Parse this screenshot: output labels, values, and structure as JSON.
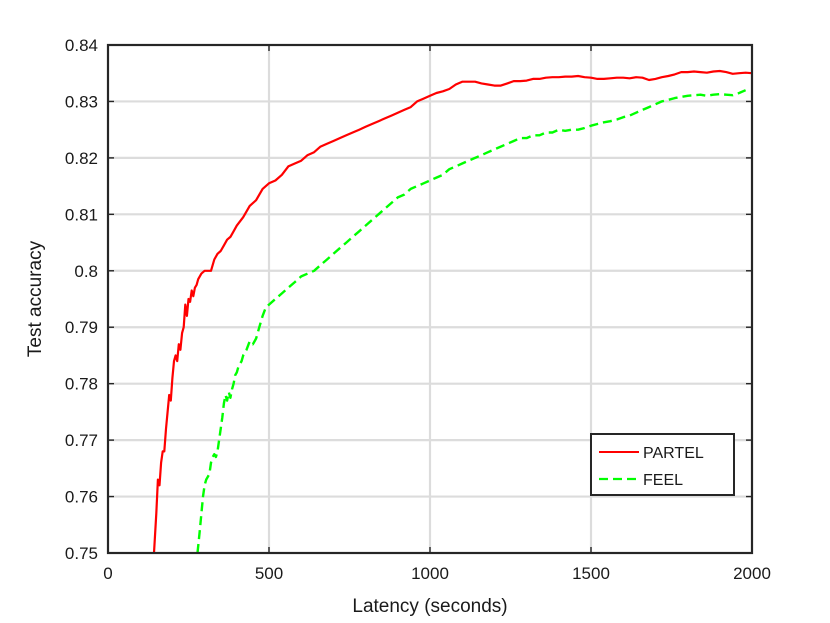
{
  "chart_data": {
    "type": "line",
    "title": "",
    "xlabel": "Latency (seconds)",
    "ylabel": "Test accuracy",
    "xlim": [
      0,
      2000
    ],
    "ylim": [
      0.75,
      0.84
    ],
    "xticks": [
      0,
      500,
      1000,
      1500,
      2000
    ],
    "xtick_labels": [
      "0",
      "500",
      "1000",
      "1500",
      "2000"
    ],
    "yticks": [
      0.75,
      0.76,
      0.77,
      0.78,
      0.79,
      0.8,
      0.81,
      0.82,
      0.83,
      0.84
    ],
    "ytick_labels": [
      "0.75",
      "0.76",
      "0.77",
      "0.78",
      "0.79",
      "0.8",
      "0.81",
      "0.82",
      "0.83",
      "0.84"
    ],
    "grid": true,
    "legend_position": "lower-right",
    "series": [
      {
        "name": "PARTEL",
        "color": "#ff0000",
        "style": "solid",
        "x": [
          143,
          150,
          155,
          160,
          165,
          170,
          175,
          180,
          185,
          190,
          195,
          200,
          205,
          210,
          215,
          220,
          225,
          230,
          235,
          240,
          245,
          250,
          255,
          260,
          265,
          270,
          275,
          280,
          290,
          300,
          310,
          320,
          330,
          340,
          350,
          360,
          370,
          380,
          390,
          400,
          420,
          440,
          460,
          480,
          500,
          520,
          540,
          560,
          580,
          600,
          620,
          640,
          660,
          680,
          700,
          720,
          740,
          760,
          780,
          800,
          820,
          840,
          860,
          880,
          900,
          920,
          940,
          960,
          980,
          1000,
          1020,
          1040,
          1060,
          1080,
          1100,
          1120,
          1140,
          1160,
          1180,
          1200,
          1220,
          1240,
          1260,
          1280,
          1300,
          1320,
          1340,
          1360,
          1380,
          1400,
          1420,
          1440,
          1460,
          1480,
          1500,
          1520,
          1540,
          1560,
          1580,
          1600,
          1620,
          1640,
          1660,
          1680,
          1700,
          1720,
          1740,
          1760,
          1780,
          1800,
          1820,
          1840,
          1860,
          1880,
          1900,
          1920,
          1940,
          1960,
          1980,
          2000
        ],
        "y": [
          0.75,
          0.757,
          0.763,
          0.762,
          0.766,
          0.768,
          0.768,
          0.772,
          0.775,
          0.778,
          0.777,
          0.781,
          0.784,
          0.785,
          0.784,
          0.787,
          0.786,
          0.789,
          0.79,
          0.794,
          0.792,
          0.795,
          0.7945,
          0.7965,
          0.7955,
          0.797,
          0.7975,
          0.7985,
          0.7995,
          0.8,
          0.8,
          0.8,
          0.802,
          0.803,
          0.8035,
          0.8045,
          0.8055,
          0.806,
          0.807,
          0.808,
          0.8095,
          0.8115,
          0.8125,
          0.8145,
          0.8155,
          0.816,
          0.817,
          0.8185,
          0.819,
          0.8195,
          0.8205,
          0.821,
          0.822,
          0.8225,
          0.823,
          0.8235,
          0.824,
          0.8245,
          0.825,
          0.8255,
          0.826,
          0.8265,
          0.827,
          0.8275,
          0.828,
          0.8285,
          0.829,
          0.83,
          0.8305,
          0.831,
          0.8315,
          0.8318,
          0.8322,
          0.833,
          0.8335,
          0.8335,
          0.8335,
          0.8332,
          0.833,
          0.8328,
          0.8328,
          0.8332,
          0.8336,
          0.8336,
          0.8337,
          0.834,
          0.834,
          0.8342,
          0.8343,
          0.8343,
          0.8344,
          0.8344,
          0.8345,
          0.8343,
          0.8342,
          0.834,
          0.834,
          0.8341,
          0.8342,
          0.8342,
          0.8341,
          0.8343,
          0.8342,
          0.8338,
          0.834,
          0.8343,
          0.8345,
          0.8348,
          0.8352,
          0.8352,
          0.8353,
          0.8352,
          0.8351,
          0.8353,
          0.8354,
          0.8352,
          0.8349,
          0.835,
          0.8351,
          0.835
        ]
      },
      {
        "name": "FEEL",
        "color": "#00ff00",
        "style": "dashed",
        "x": [
          278,
          285,
          290,
          295,
          300,
          305,
          310,
          315,
          320,
          325,
          330,
          335,
          340,
          345,
          350,
          355,
          360,
          365,
          370,
          375,
          380,
          385,
          390,
          395,
          400,
          405,
          410,
          415,
          420,
          430,
          440,
          450,
          460,
          470,
          480,
          490,
          500,
          520,
          540,
          560,
          580,
          600,
          620,
          640,
          660,
          680,
          700,
          720,
          740,
          760,
          780,
          800,
          820,
          840,
          860,
          880,
          900,
          920,
          940,
          960,
          980,
          1000,
          1020,
          1040,
          1060,
          1080,
          1100,
          1120,
          1140,
          1160,
          1180,
          1200,
          1220,
          1240,
          1260,
          1280,
          1300,
          1320,
          1340,
          1360,
          1380,
          1400,
          1420,
          1440,
          1460,
          1480,
          1500,
          1520,
          1540,
          1560,
          1580,
          1600,
          1620,
          1640,
          1660,
          1680,
          1700,
          1720,
          1740,
          1760,
          1780,
          1800,
          1820,
          1840,
          1860,
          1880,
          1900,
          1920,
          1940,
          1960,
          1980
        ],
        "y": [
          0.75,
          0.754,
          0.757,
          0.76,
          0.762,
          0.763,
          0.7635,
          0.764,
          0.766,
          0.767,
          0.7675,
          0.767,
          0.768,
          0.77,
          0.772,
          0.774,
          0.7765,
          0.778,
          0.777,
          0.7785,
          0.7775,
          0.779,
          0.78,
          0.7815,
          0.782,
          0.783,
          0.7835,
          0.784,
          0.785,
          0.786,
          0.7875,
          0.787,
          0.788,
          0.79,
          0.792,
          0.7935,
          0.794,
          0.795,
          0.796,
          0.797,
          0.798,
          0.799,
          0.7995,
          0.8,
          0.801,
          0.802,
          0.803,
          0.804,
          0.805,
          0.806,
          0.807,
          0.808,
          0.809,
          0.81,
          0.811,
          0.812,
          0.813,
          0.8135,
          0.8145,
          0.815,
          0.8155,
          0.816,
          0.8165,
          0.817,
          0.818,
          0.8185,
          0.819,
          0.8195,
          0.82,
          0.8205,
          0.821,
          0.8215,
          0.822,
          0.8225,
          0.823,
          0.8235,
          0.8235,
          0.824,
          0.824,
          0.8245,
          0.8245,
          0.825,
          0.8248,
          0.825,
          0.825,
          0.8253,
          0.8257,
          0.826,
          0.8263,
          0.8265,
          0.8268,
          0.8272,
          0.8275,
          0.828,
          0.8285,
          0.829,
          0.8295,
          0.83,
          0.8303,
          0.8306,
          0.8308,
          0.831,
          0.8311,
          0.8312,
          0.831,
          0.8312,
          0.8313,
          0.8312,
          0.8311,
          0.8315,
          0.832
        ]
      }
    ]
  }
}
